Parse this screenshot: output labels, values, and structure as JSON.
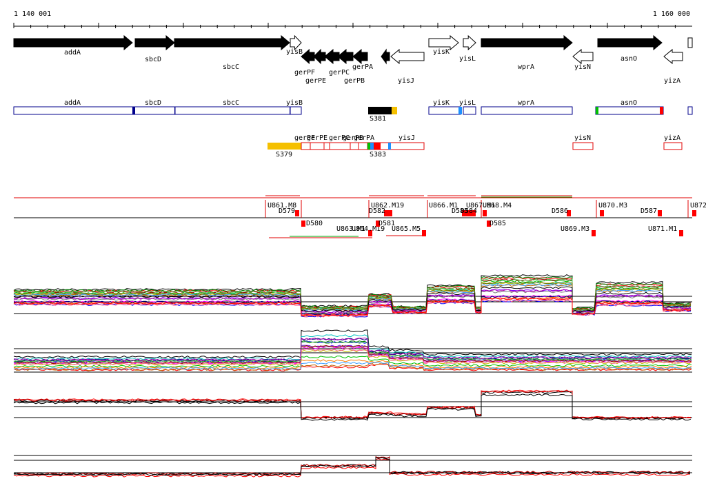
{
  "ruler": {
    "start": "1 140 001",
    "end": "1 160 000"
  },
  "genes": [
    "addA",
    "sbcD",
    "sbcC",
    "yisB",
    "gerPF",
    "gerPE",
    "gerPC",
    "gerPB",
    "gerPA",
    "yisJ",
    "yisK",
    "yisL",
    "wprA",
    "yisN",
    "asnO",
    "yizA"
  ],
  "annotations": [
    "addA",
    "sbcD",
    "sbcC",
    "yisB",
    "S381",
    "yisK",
    "yisL",
    "wprA",
    "asnO"
  ],
  "segments": [
    "S379",
    "gerPF",
    "gerPE",
    "gerPC",
    "gerPB",
    "gerPA",
    "S383",
    "yisJ",
    "yisN",
    "yizA"
  ],
  "transcripts": [
    "U861.M8",
    "D579",
    "D580",
    "U863.M1",
    "U864.M19",
    "U862.M19",
    "D582",
    "D581",
    "U865.M5",
    "U866.M1",
    "U867.M1",
    "D583",
    "D584",
    "U868.M4",
    "D585",
    "D586",
    "U869.M3",
    "U870.M3",
    "D587",
    "U871.M1",
    "U872"
  ]
}
